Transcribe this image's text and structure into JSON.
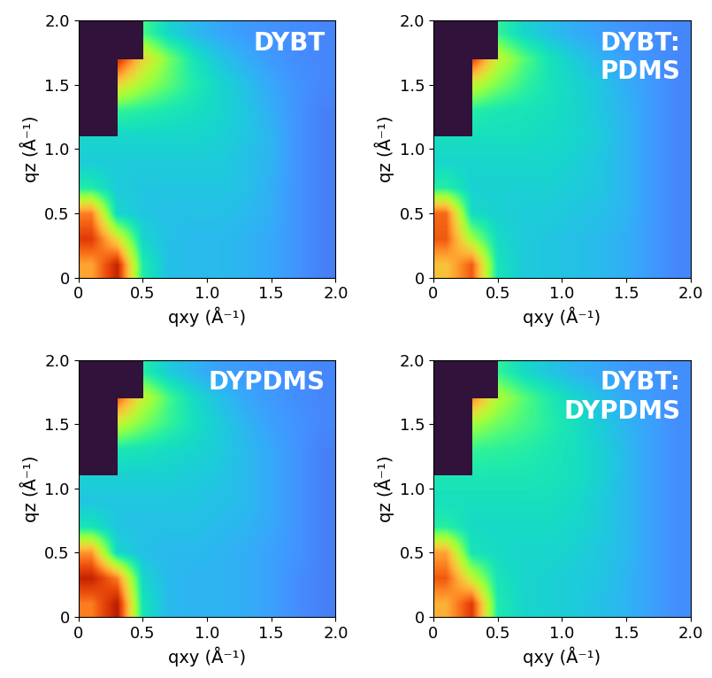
{
  "chart_data": [
    {
      "type": "heatmap",
      "title": "DYBT",
      "xlabel": "qxy (Å⁻¹)",
      "ylabel": "qz (Å⁻¹)",
      "xlim": [
        0,
        2.0
      ],
      "ylim": [
        0,
        2.0
      ],
      "xticks": [
        0,
        0.5,
        1.0,
        1.5,
        2.0
      ],
      "yticks": [
        0,
        0.5,
        1.0,
        1.5,
        2.0
      ],
      "color": "turbo",
      "clim": [
        0,
        1
      ],
      "cells": [
        [
          null,
          null,
          0.4,
          0.3,
          0.25,
          0.22,
          0.2,
          0.19,
          0.18,
          0.17
        ],
        [
          null,
          0.88,
          0.62,
          0.45,
          0.33,
          0.27,
          0.23,
          0.2,
          0.18,
          0.17
        ],
        [
          null,
          0.62,
          0.5,
          0.42,
          0.35,
          0.3,
          0.26,
          0.22,
          0.19,
          0.17
        ],
        [
          null,
          0.38,
          0.36,
          0.34,
          0.32,
          0.3,
          0.27,
          0.23,
          0.19,
          0.16
        ],
        [
          0.3,
          0.3,
          0.3,
          0.3,
          0.3,
          0.29,
          0.27,
          0.24,
          0.19,
          0.16
        ],
        [
          0.28,
          0.28,
          0.28,
          0.28,
          0.28,
          0.28,
          0.26,
          0.24,
          0.19,
          0.16
        ],
        [
          0.35,
          0.28,
          0.27,
          0.27,
          0.27,
          0.27,
          0.26,
          0.23,
          0.19,
          0.16
        ],
        [
          0.75,
          0.3,
          0.27,
          0.26,
          0.26,
          0.26,
          0.25,
          0.23,
          0.19,
          0.16
        ],
        [
          0.85,
          0.6,
          0.3,
          0.26,
          0.25,
          0.25,
          0.24,
          0.22,
          0.19,
          0.16
        ],
        [
          0.7,
          0.9,
          0.35,
          0.26,
          0.25,
          0.25,
          0.24,
          0.22,
          0.19,
          0.16
        ]
      ]
    },
    {
      "type": "heatmap",
      "title": "DYBT:\nPDMS",
      "xlabel": "qxy (Å⁻¹)",
      "ylabel": "qz (Å⁻¹)",
      "xlim": [
        0,
        2.0
      ],
      "ylim": [
        0,
        2.0
      ],
      "xticks": [
        0,
        0.5,
        1.0,
        1.5,
        2.0
      ],
      "yticks": [
        0,
        0.5,
        1.0,
        1.5,
        2.0
      ],
      "color": "turbo",
      "clim": [
        0,
        1
      ],
      "cells": [
        [
          null,
          null,
          0.38,
          0.3,
          0.26,
          0.23,
          0.21,
          0.19,
          0.18,
          0.17
        ],
        [
          null,
          0.85,
          0.55,
          0.42,
          0.33,
          0.28,
          0.24,
          0.21,
          0.19,
          0.17
        ],
        [
          null,
          0.55,
          0.45,
          0.38,
          0.33,
          0.3,
          0.27,
          0.23,
          0.2,
          0.17
        ],
        [
          null,
          0.36,
          0.34,
          0.33,
          0.32,
          0.3,
          0.27,
          0.24,
          0.2,
          0.17
        ],
        [
          0.32,
          0.32,
          0.32,
          0.32,
          0.31,
          0.3,
          0.28,
          0.24,
          0.2,
          0.17
        ],
        [
          0.3,
          0.3,
          0.3,
          0.3,
          0.3,
          0.29,
          0.27,
          0.24,
          0.2,
          0.17
        ],
        [
          0.36,
          0.29,
          0.29,
          0.29,
          0.29,
          0.28,
          0.27,
          0.24,
          0.2,
          0.17
        ],
        [
          0.78,
          0.31,
          0.29,
          0.28,
          0.28,
          0.27,
          0.26,
          0.24,
          0.2,
          0.17
        ],
        [
          0.8,
          0.5,
          0.31,
          0.28,
          0.27,
          0.26,
          0.25,
          0.23,
          0.2,
          0.17
        ],
        [
          0.65,
          0.8,
          0.33,
          0.28,
          0.27,
          0.26,
          0.25,
          0.23,
          0.2,
          0.17
        ]
      ]
    },
    {
      "type": "heatmap",
      "title": "DYPDMS",
      "xlabel": "qxy (Å⁻¹)",
      "ylabel": "qz (Å⁻¹)",
      "xlim": [
        0,
        2.0
      ],
      "ylim": [
        0,
        2.0
      ],
      "xticks": [
        0,
        0.5,
        1.0,
        1.5,
        2.0
      ],
      "yticks": [
        0,
        0.5,
        1.0,
        1.5,
        2.0
      ],
      "color": "turbo",
      "clim": [
        0,
        1
      ],
      "cells": [
        [
          null,
          null,
          0.36,
          0.28,
          0.24,
          0.21,
          0.2,
          0.19,
          0.18,
          0.17
        ],
        [
          null,
          0.8,
          0.55,
          0.4,
          0.31,
          0.26,
          0.22,
          0.2,
          0.18,
          0.17
        ],
        [
          null,
          0.55,
          0.45,
          0.38,
          0.32,
          0.28,
          0.24,
          0.21,
          0.19,
          0.17
        ],
        [
          null,
          0.34,
          0.33,
          0.31,
          0.3,
          0.28,
          0.25,
          0.22,
          0.19,
          0.16
        ],
        [
          0.29,
          0.29,
          0.29,
          0.29,
          0.28,
          0.27,
          0.25,
          0.22,
          0.19,
          0.16
        ],
        [
          0.27,
          0.27,
          0.27,
          0.27,
          0.27,
          0.26,
          0.25,
          0.22,
          0.19,
          0.16
        ],
        [
          0.33,
          0.27,
          0.26,
          0.26,
          0.26,
          0.25,
          0.24,
          0.22,
          0.19,
          0.16
        ],
        [
          0.72,
          0.3,
          0.26,
          0.25,
          0.25,
          0.24,
          0.23,
          0.21,
          0.19,
          0.16
        ],
        [
          0.9,
          0.75,
          0.3,
          0.25,
          0.24,
          0.24,
          0.23,
          0.21,
          0.18,
          0.16
        ],
        [
          0.75,
          0.92,
          0.33,
          0.25,
          0.24,
          0.24,
          0.23,
          0.21,
          0.18,
          0.16
        ]
      ]
    },
    {
      "type": "heatmap",
      "title": "DYBT:\nDYPDMS",
      "xlabel": "qxy (Å⁻¹)",
      "ylabel": "qz (Å⁻¹)",
      "xlim": [
        0,
        2.0
      ],
      "ylim": [
        0,
        2.0
      ],
      "xticks": [
        0,
        0.5,
        1.0,
        1.5,
        2.0
      ],
      "yticks": [
        0,
        0.5,
        1.0,
        1.5,
        2.0
      ],
      "color": "turbo",
      "clim": [
        0,
        1
      ],
      "cells": [
        [
          null,
          null,
          0.38,
          0.31,
          0.27,
          0.24,
          0.22,
          0.2,
          0.19,
          0.18
        ],
        [
          null,
          0.75,
          0.52,
          0.42,
          0.35,
          0.3,
          0.26,
          0.22,
          0.2,
          0.18
        ],
        [
          null,
          0.5,
          0.44,
          0.4,
          0.36,
          0.32,
          0.28,
          0.24,
          0.21,
          0.18
        ],
        [
          null,
          0.38,
          0.37,
          0.36,
          0.34,
          0.32,
          0.29,
          0.25,
          0.21,
          0.18
        ],
        [
          0.34,
          0.34,
          0.34,
          0.34,
          0.33,
          0.32,
          0.29,
          0.25,
          0.21,
          0.18
        ],
        [
          0.32,
          0.32,
          0.32,
          0.32,
          0.32,
          0.31,
          0.28,
          0.25,
          0.21,
          0.18
        ],
        [
          0.36,
          0.31,
          0.31,
          0.31,
          0.31,
          0.3,
          0.28,
          0.25,
          0.21,
          0.18
        ],
        [
          0.7,
          0.33,
          0.31,
          0.3,
          0.3,
          0.29,
          0.27,
          0.25,
          0.21,
          0.18
        ],
        [
          0.8,
          0.55,
          0.33,
          0.3,
          0.29,
          0.28,
          0.27,
          0.24,
          0.21,
          0.18
        ],
        [
          0.68,
          0.85,
          0.35,
          0.3,
          0.29,
          0.28,
          0.26,
          0.24,
          0.21,
          0.18
        ]
      ]
    }
  ]
}
